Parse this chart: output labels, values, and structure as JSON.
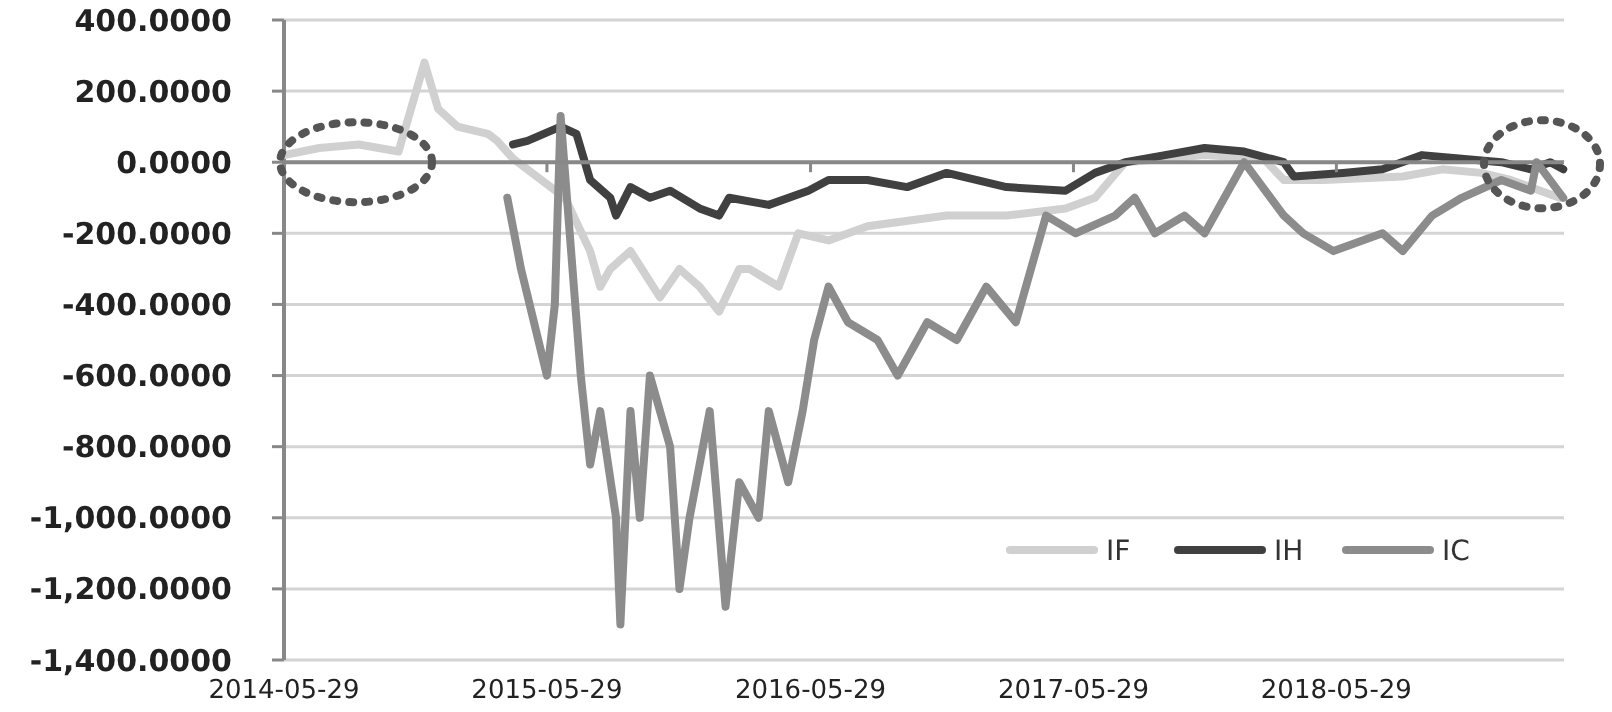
{
  "chart_data": {
    "type": "line",
    "x": [
      "2014-05-29",
      "2014-07-17",
      "2014-09-10",
      "2014-11-04",
      "2014-12-10",
      "2014-12-29",
      "2015-01-25",
      "2015-03-08",
      "2015-03-21",
      "2015-04-12",
      "2015-06-23",
      "2015-07-28",
      "2015-08-11",
      "2015-08-25",
      "2015-09-22",
      "2015-11-02",
      "2015-11-29",
      "2015-12-27",
      "2016-01-23",
      "2016-02-20",
      "2016-03-05",
      "2016-04-15",
      "2016-05-12",
      "2016-06-23",
      "2016-08-16",
      "2016-12-04",
      "2017-02-25",
      "2017-05-18",
      "2017-06-28",
      "2017-08-09",
      "2017-11-27",
      "2018-02-17",
      "2018-03-17",
      "2018-05-11",
      "2018-08-29",
      "2018-10-23",
      "2018-12-16",
      "2019-01-26",
      "2019-03-08",
      "2019-04-04"
    ],
    "series": [
      {
        "name": "IF",
        "color": "#d0d0d0",
        "values": [
          20,
          40,
          50,
          30,
          280,
          150,
          100,
          80,
          60,
          10,
          -100,
          -250,
          -350,
          -300,
          -250,
          -380,
          -300,
          -350,
          -420,
          -300,
          -300,
          -350,
          -200,
          -220,
          -180,
          -150,
          -150,
          -130,
          -100,
          0,
          20,
          10,
          -50,
          -50,
          -40,
          -20,
          -30,
          -50,
          -80,
          -100
        ]
      },
      {
        "name": "IH",
        "color": "#404040",
        "x": [
          "2015-04-12",
          "2015-05-02",
          "2015-06-17",
          "2015-07-09",
          "2015-07-28",
          "2015-08-25",
          "2015-09-02",
          "2015-09-22",
          "2015-10-19",
          "2015-11-16",
          "2015-12-27",
          "2016-01-23",
          "2016-02-06",
          "2016-04-01",
          "2016-05-26",
          "2016-06-23",
          "2016-08-16",
          "2016-10-10",
          "2016-12-04",
          "2017-02-25",
          "2017-05-18",
          "2017-06-28",
          "2017-08-09",
          "2017-10-03",
          "2017-11-27",
          "2018-01-21",
          "2018-03-17",
          "2018-03-31",
          "2018-06-07",
          "2018-08-01",
          "2018-09-25",
          "2018-11-19",
          "2019-01-13",
          "2019-02-23",
          "2019-03-22",
          "2019-04-09"
        ],
        "values": [
          50,
          60,
          100,
          80,
          -50,
          -100,
          -150,
          -70,
          -100,
          -80,
          -130,
          -150,
          -100,
          -120,
          -80,
          -50,
          -50,
          -70,
          -30,
          -70,
          -80,
          -30,
          0,
          20,
          40,
          30,
          0,
          -40,
          -30,
          -20,
          20,
          10,
          0,
          -20,
          0,
          -20
        ]
      },
      {
        "name": "IC",
        "color": "#8c8c8c",
        "x": [
          "2015-04-04",
          "2015-04-23",
          "2015-05-29",
          "2015-06-09",
          "2015-06-17",
          "2015-07-15",
          "2015-07-28",
          "2015-08-11",
          "2015-09-02",
          "2015-09-08",
          "2015-09-22",
          "2015-10-05",
          "2015-10-19",
          "2015-11-16",
          "2015-11-29",
          "2015-12-13",
          "2016-01-10",
          "2016-02-01",
          "2016-02-20",
          "2016-03-18",
          "2016-04-01",
          "2016-04-28",
          "2016-05-18",
          "2016-06-03",
          "2016-06-23",
          "2016-07-20",
          "2016-08-30",
          "2016-09-27",
          "2016-11-07",
          "2016-12-18",
          "2017-01-28",
          "2017-03-10",
          "2017-04-21",
          "2017-06-01",
          "2017-07-26",
          "2017-08-22",
          "2017-09-19",
          "2017-10-30",
          "2017-11-27",
          "2018-01-21",
          "2018-03-17",
          "2018-04-13",
          "2018-05-25",
          "2018-08-01",
          "2018-08-29",
          "2018-10-09",
          "2018-11-19",
          "2019-01-13",
          "2019-02-23",
          "2019-03-03",
          "2019-04-09"
        ],
        "values": [
          -100,
          -300,
          -600,
          -400,
          130,
          -600,
          -850,
          -700,
          -1000,
          -1300,
          -700,
          -1000,
          -600,
          -800,
          -1200,
          -1000,
          -700,
          -1250,
          -900,
          -1000,
          -700,
          -900,
          -700,
          -500,
          -350,
          -450,
          -500,
          -600,
          -450,
          -500,
          -350,
          -450,
          -150,
          -200,
          -150,
          -100,
          -200,
          -150,
          -200,
          0,
          -150,
          -200,
          -250,
          -200,
          -250,
          -150,
          -100,
          -50,
          -80,
          0,
          -100
        ]
      }
    ],
    "xlim": [
      "2014-05-29",
      "2019-04-10"
    ],
    "xticks": [
      {
        "value": "2014-05-29",
        "label": "2014-05-29"
      },
      {
        "value": "2015-05-29",
        "label": "2015-05-29"
      },
      {
        "value": "2016-05-29",
        "label": "2016-05-29"
      },
      {
        "value": "2017-05-29",
        "label": "2017-05-29"
      },
      {
        "value": "2018-05-29",
        "label": "2018-05-29"
      }
    ],
    "ylim": [
      -1400,
      400
    ],
    "yticks": [
      {
        "value": 400,
        "label": "400.0000"
      },
      {
        "value": 200,
        "label": "200.0000"
      },
      {
        "value": 0,
        "label": "0.0000"
      },
      {
        "value": -200,
        "label": "-200.0000"
      },
      {
        "value": -400,
        "label": "-400.0000"
      },
      {
        "value": -600,
        "label": "-600.0000"
      },
      {
        "value": -800,
        "label": "-800.0000"
      },
      {
        "value": -1000,
        "label": "-1,000.0000"
      },
      {
        "value": -1200,
        "label": "-1,200.0000"
      },
      {
        "value": -1400,
        "label": "-1,400.0000"
      }
    ],
    "grid": "y",
    "legend": "bottom right",
    "line_style": "solid"
  }
}
